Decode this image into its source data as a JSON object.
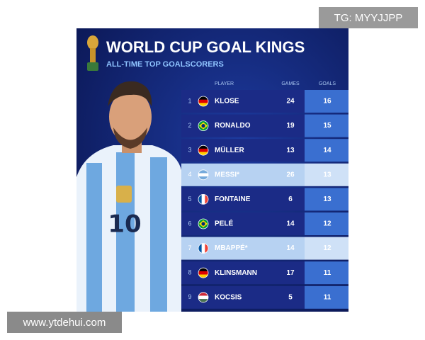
{
  "header": {
    "title": "WORLD CUP GOAL KINGS",
    "subtitle": "ALL-TIME TOP GOALSCORERS"
  },
  "table": {
    "columns": [
      "PLAYER",
      "GAMES",
      "GOALS"
    ],
    "rows": [
      [
        "1",
        "KLOSE",
        "24",
        "16"
      ],
      [
        "2",
        "RONALDO",
        "19",
        "15"
      ],
      [
        "3",
        "MÜLLER",
        "13",
        "14"
      ],
      [
        "4",
        "MESSI*",
        "26",
        "13"
      ],
      [
        "5",
        "FONTAINE",
        "6",
        "13"
      ],
      [
        "6",
        "PELÉ",
        "14",
        "12"
      ],
      [
        "7",
        "MBAPPÉ*",
        "14",
        "12"
      ],
      [
        "8",
        "KLINSMANN",
        "17",
        "11"
      ],
      [
        "9",
        "KOCSIS",
        "5",
        "11"
      ]
    ]
  },
  "watermarks": {
    "top": "TG: MYYJJPP",
    "bottom": "www.ytdehui.com"
  }
}
